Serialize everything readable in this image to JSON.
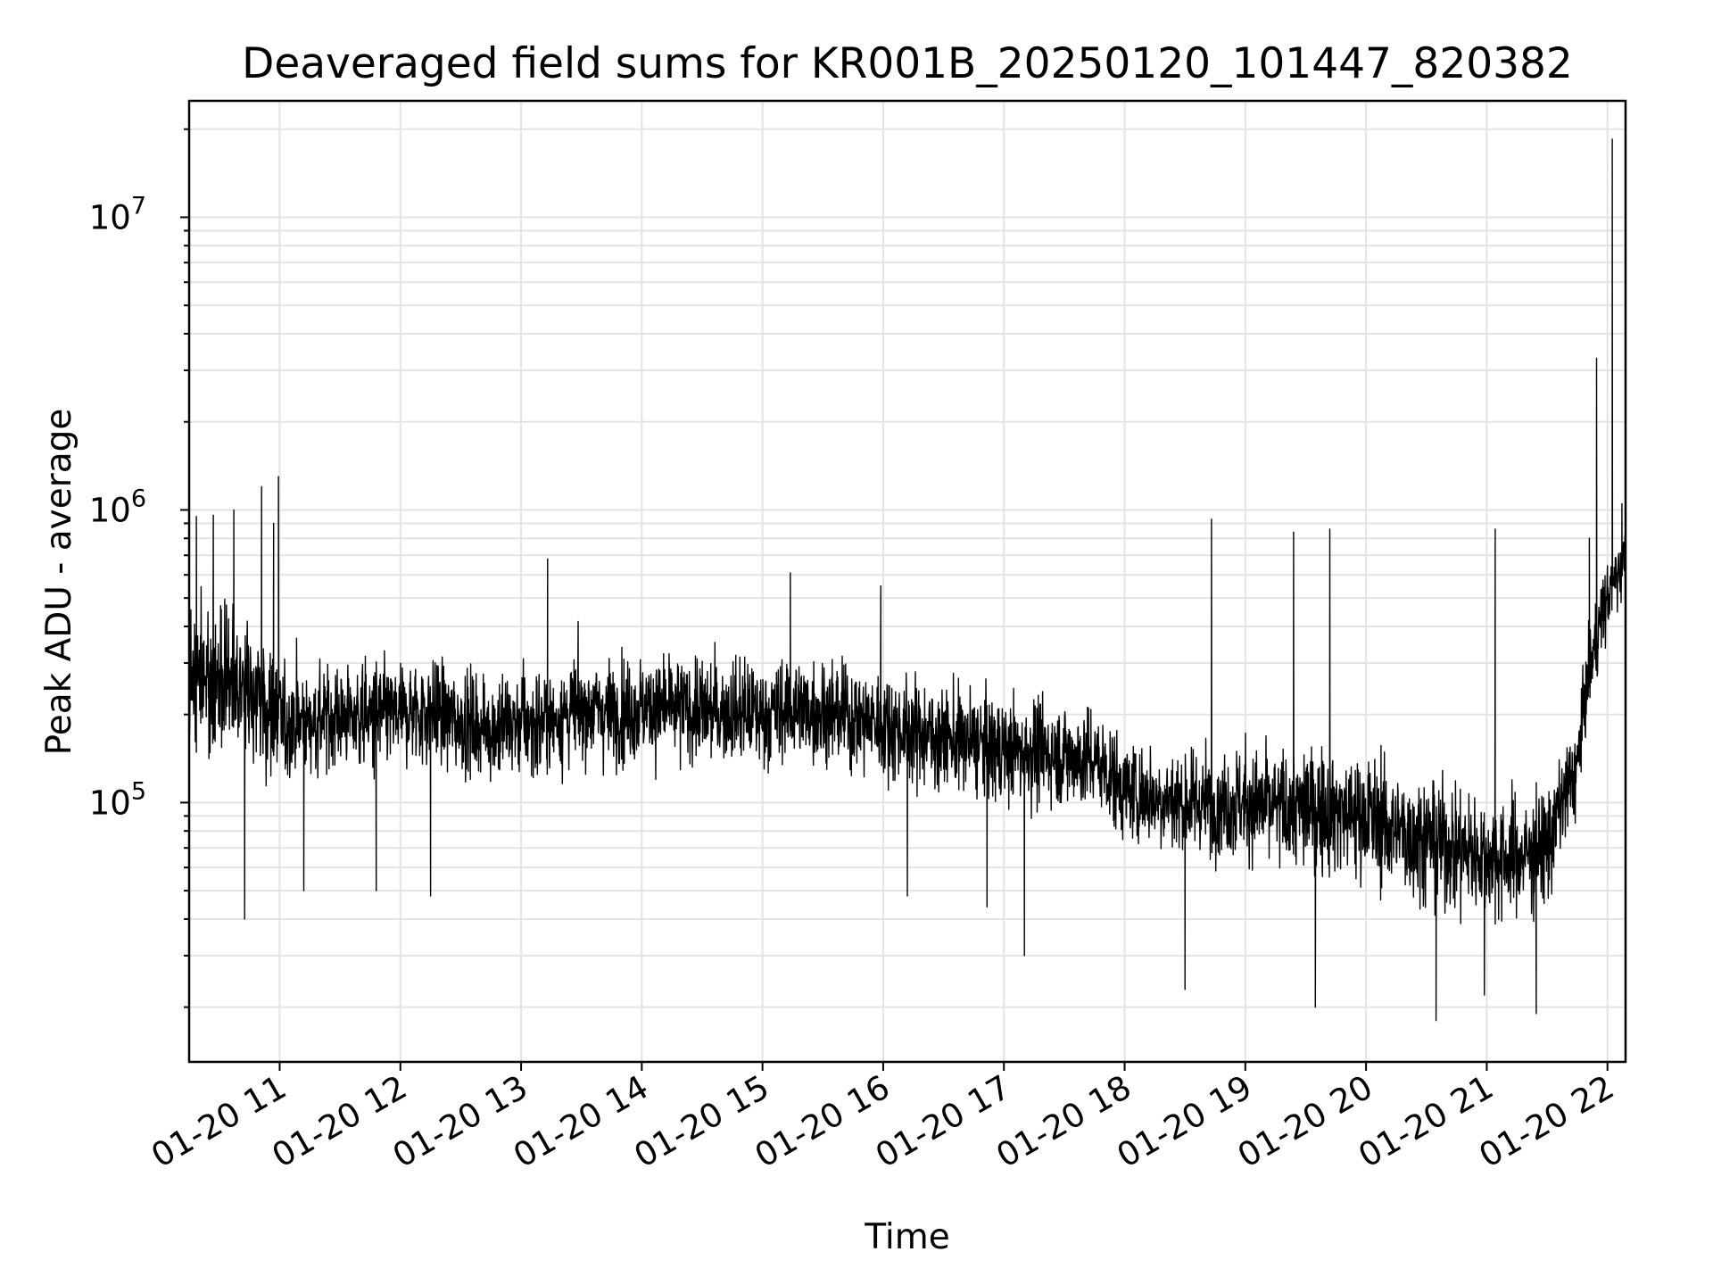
{
  "chart_data": {
    "type": "line",
    "title": "Deaveraged field sums for KR001B_20250120_101447_820382",
    "xlabel": "Time",
    "ylabel": "Peak ADU - average",
    "yscale": "log",
    "grid": "on",
    "legend": "none",
    "xlim": [
      "2025-01-20 10:15",
      "2025-01-20 22:15"
    ],
    "ylim": [
      13000,
      25000000
    ],
    "x_tick_labels": [
      "01-20 11",
      "01-20 12",
      "01-20 13",
      "01-20 14",
      "01-20 15",
      "01-20 16",
      "01-20 17",
      "01-20 18",
      "01-20 19",
      "01-20 20",
      "01-20 21",
      "01-20 22"
    ],
    "x_tick_hours": [
      11,
      12,
      13,
      14,
      15,
      16,
      17,
      18,
      19,
      20,
      21,
      22
    ],
    "y_tick_labels": [
      {
        "base": "10",
        "exp": "5",
        "value": 100000
      },
      {
        "base": "10",
        "exp": "6",
        "value": 1000000
      },
      {
        "base": "10",
        "exp": "7",
        "value": 10000000
      }
    ],
    "series": [
      {
        "color": "#000000",
        "x_hours": [
          10.25,
          10.5,
          10.75,
          11.0,
          11.25,
          11.5,
          11.75,
          12.0,
          12.25,
          12.5,
          12.75,
          13.0,
          13.25,
          13.5,
          13.75,
          14.0,
          14.25,
          14.5,
          14.75,
          15.0,
          15.25,
          15.5,
          15.75,
          16.0,
          16.25,
          16.5,
          16.75,
          17.0,
          17.25,
          17.5,
          17.75,
          18.0,
          18.25,
          18.5,
          18.75,
          19.0,
          19.25,
          19.5,
          19.75,
          20.0,
          20.25,
          20.5,
          20.75,
          21.0,
          21.25,
          21.5,
          21.75,
          22.0,
          22.15
        ],
        "median": [
          270000,
          260000,
          240000,
          190000,
          190000,
          200000,
          195000,
          200000,
          205000,
          190000,
          180000,
          185000,
          190000,
          210000,
          205000,
          210000,
          210000,
          205000,
          205000,
          200000,
          210000,
          205000,
          195000,
          185000,
          175000,
          165000,
          160000,
          150000,
          150000,
          145000,
          140000,
          110000,
          105000,
          100000,
          100000,
          100000,
          95000,
          95000,
          95000,
          90000,
          80000,
          75000,
          70000,
          65000,
          65000,
          70000,
          130000,
          500000,
          700000
        ],
        "spread_decades": [
          0.28,
          0.3,
          0.3,
          0.25,
          0.22,
          0.22,
          0.22,
          0.22,
          0.22,
          0.22,
          0.22,
          0.22,
          0.22,
          0.22,
          0.22,
          0.22,
          0.22,
          0.22,
          0.22,
          0.22,
          0.22,
          0.22,
          0.22,
          0.22,
          0.22,
          0.22,
          0.22,
          0.22,
          0.22,
          0.22,
          0.22,
          0.22,
          0.22,
          0.22,
          0.22,
          0.24,
          0.25,
          0.26,
          0.27,
          0.27,
          0.27,
          0.27,
          0.27,
          0.26,
          0.25,
          0.25,
          0.2,
          0.15,
          0.15
        ],
        "spikes": [
          {
            "hour": 10.31,
            "y": 950000
          },
          {
            "hour": 10.45,
            "y": 960000
          },
          {
            "hour": 10.62,
            "y": 1000000
          },
          {
            "hour": 10.71,
            "y": 40000
          },
          {
            "hour": 10.85,
            "y": 1200000
          },
          {
            "hour": 10.95,
            "y": 900000
          },
          {
            "hour": 10.99,
            "y": 1300000
          },
          {
            "hour": 11.2,
            "y": 50000
          },
          {
            "hour": 11.8,
            "y": 50000
          },
          {
            "hour": 12.25,
            "y": 48000
          },
          {
            "hour": 13.22,
            "y": 680000
          },
          {
            "hour": 15.23,
            "y": 610000
          },
          {
            "hour": 15.98,
            "y": 550000
          },
          {
            "hour": 16.2,
            "y": 48000
          },
          {
            "hour": 16.86,
            "y": 44000
          },
          {
            "hour": 17.17,
            "y": 30000
          },
          {
            "hour": 18.72,
            "y": 930000
          },
          {
            "hour": 18.5,
            "y": 23000
          },
          {
            "hour": 19.4,
            "y": 840000
          },
          {
            "hour": 19.7,
            "y": 860000
          },
          {
            "hour": 19.58,
            "y": 20000
          },
          {
            "hour": 20.58,
            "y": 18000
          },
          {
            "hour": 20.98,
            "y": 22000
          },
          {
            "hour": 21.07,
            "y": 860000
          },
          {
            "hour": 21.41,
            "y": 19000
          },
          {
            "hour": 21.85,
            "y": 800000
          },
          {
            "hour": 21.91,
            "y": 3300000
          },
          {
            "hour": 22.04,
            "y": 18500000
          },
          {
            "hour": 22.12,
            "y": 1050000
          }
        ]
      }
    ]
  }
}
